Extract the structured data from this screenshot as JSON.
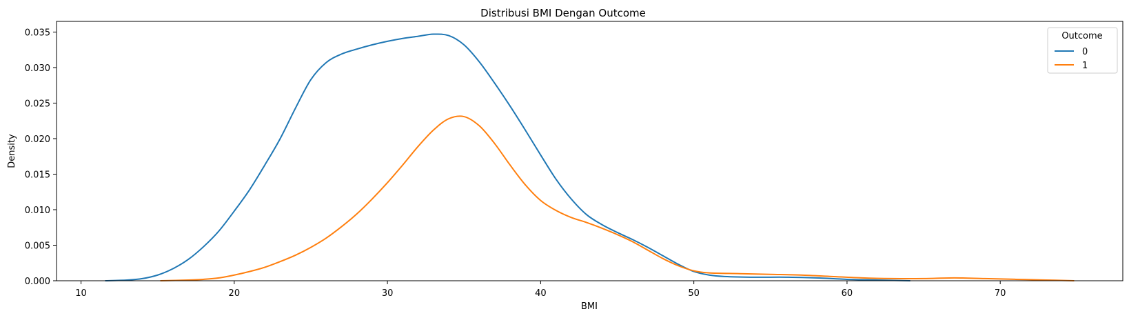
{
  "chart_data": {
    "type": "line",
    "title": "Distribusi BMI Dengan Outcome",
    "xlabel": "BMI",
    "ylabel": "Density",
    "xlim": [
      8.4,
      78.0
    ],
    "ylim": [
      0,
      0.0365
    ],
    "xticks": [
      10,
      20,
      30,
      40,
      50,
      60,
      70
    ],
    "xtick_labels": [
      "10",
      "20",
      "30",
      "40",
      "50",
      "60",
      "70"
    ],
    "yticks": [
      0,
      0.005,
      0.01,
      0.015,
      0.02,
      0.025,
      0.03,
      0.035
    ],
    "ytick_labels": [
      "0.000",
      "0.005",
      "0.010",
      "0.015",
      "0.020",
      "0.025",
      "0.030",
      "0.035"
    ],
    "grid": false,
    "legend": {
      "title": "Outcome",
      "placement": "top-right"
    },
    "series": [
      {
        "name": "0",
        "color": "#1f77b4",
        "x": [
          11.6,
          13,
          14,
          15,
          16,
          17,
          18,
          19,
          20,
          21,
          22,
          23,
          24,
          25,
          26,
          27,
          28,
          29,
          30,
          31,
          32,
          33,
          34,
          35,
          36,
          37,
          38,
          39,
          40,
          41,
          42,
          43,
          44,
          45,
          46,
          47,
          48,
          49,
          50,
          51,
          52,
          54,
          56,
          58,
          60,
          62,
          64.1
        ],
        "y": [
          0.0,
          0.0001,
          0.0003,
          0.0008,
          0.0017,
          0.003,
          0.0048,
          0.007,
          0.0098,
          0.0128,
          0.0163,
          0.02,
          0.0243,
          0.0283,
          0.0307,
          0.0319,
          0.0326,
          0.0332,
          0.0337,
          0.0341,
          0.0344,
          0.0347,
          0.0345,
          0.0332,
          0.0308,
          0.0278,
          0.0246,
          0.0212,
          0.0177,
          0.0143,
          0.0115,
          0.0093,
          0.0079,
          0.0068,
          0.0058,
          0.0047,
          0.0035,
          0.0023,
          0.0013,
          0.0008,
          0.0006,
          0.0005,
          0.0005,
          0.0004,
          0.0002,
          0.0001,
          0.0
        ]
      },
      {
        "name": "1",
        "color": "#ff7f0e",
        "x": [
          15.2,
          17,
          18,
          19,
          20,
          21,
          22,
          23,
          24,
          25,
          26,
          27,
          28,
          29,
          30,
          31,
          32,
          33,
          34,
          35,
          36,
          37,
          38,
          39,
          40,
          41,
          42,
          43,
          44,
          45,
          46,
          47,
          48,
          49,
          50,
          51,
          53,
          55,
          57,
          59,
          61,
          63,
          65,
          67,
          69,
          71,
          73,
          74.8
        ],
        "y": [
          0.0,
          0.0001,
          0.0002,
          0.0004,
          0.0008,
          0.0013,
          0.0019,
          0.0027,
          0.0036,
          0.0047,
          0.006,
          0.0076,
          0.0094,
          0.0115,
          0.0138,
          0.0163,
          0.0189,
          0.0212,
          0.0228,
          0.0231,
          0.0218,
          0.0193,
          0.0163,
          0.0135,
          0.0113,
          0.0099,
          0.0089,
          0.0082,
          0.0074,
          0.0065,
          0.0055,
          0.0043,
          0.0031,
          0.0021,
          0.0014,
          0.0011,
          0.001,
          0.0009,
          0.0008,
          0.0006,
          0.0004,
          0.0003,
          0.0003,
          0.0004,
          0.0003,
          0.0002,
          0.0001,
          0.0
        ]
      }
    ]
  }
}
